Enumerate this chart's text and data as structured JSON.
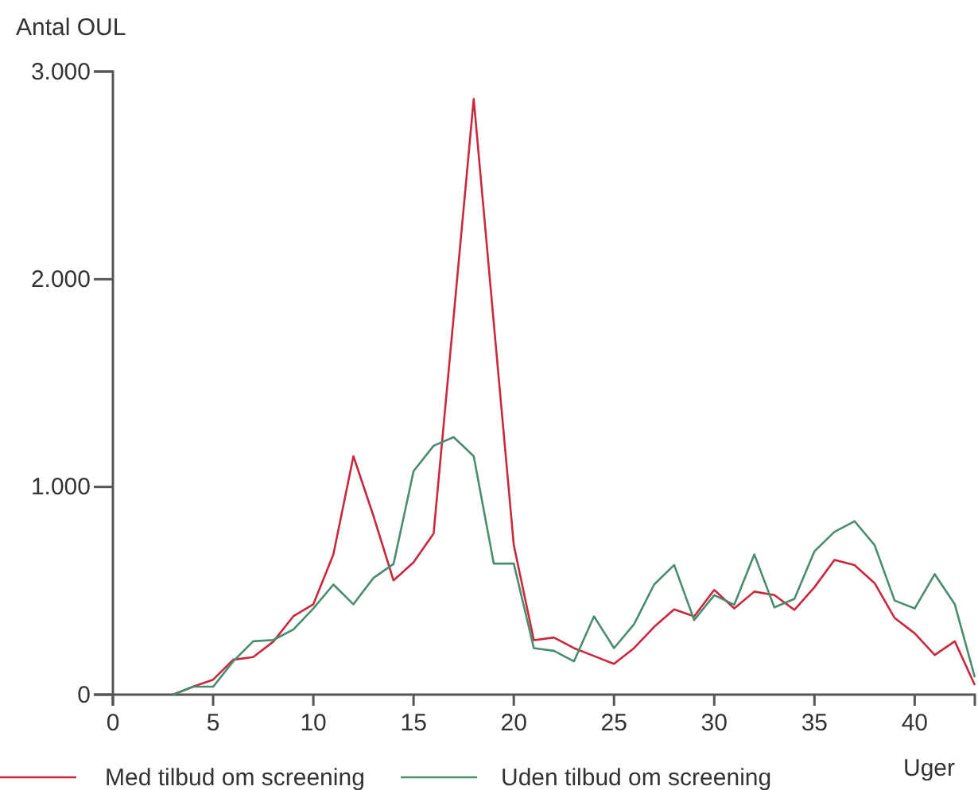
{
  "chart_data": {
    "type": "line",
    "ylabel": "Antal OUL",
    "xlabel": "Uger",
    "x": [
      3,
      4,
      5,
      6,
      7,
      8,
      9,
      10,
      11,
      12,
      13,
      14,
      15,
      16,
      17,
      18,
      19,
      20,
      21,
      22,
      23,
      24,
      25,
      26,
      27,
      28,
      29,
      30,
      31,
      32,
      33,
      34,
      35,
      36,
      37,
      38,
      39,
      40,
      41,
      42,
      43
    ],
    "series": [
      {
        "name": "Med tilbud om screening",
        "color": "#c8283c",
        "values": [
          0,
          38,
          72,
          168,
          181,
          255,
          377,
          435,
          675,
          1148,
          860,
          550,
          637,
          776,
          1820,
          2868,
          1790,
          720,
          262,
          275,
          224,
          186,
          148,
          224,
          326,
          410,
          377,
          504,
          415,
          496,
          479,
          408,
          517,
          649,
          624,
          537,
          369,
          295,
          191,
          257,
          46
        ]
      },
      {
        "name": "Uden tilbud om screening",
        "color": "#4a8c6e",
        "values": [
          0,
          38,
          38,
          160,
          257,
          263,
          313,
          415,
          530,
          435,
          562,
          629,
          1076,
          1198,
          1240,
          1148,
          631,
          631,
          224,
          211,
          160,
          377,
          224,
          339,
          530,
          624,
          359,
          479,
          433,
          675,
          420,
          461,
          690,
          784,
          835,
          720,
          453,
          415,
          580,
          435,
          84
        ]
      }
    ],
    "xlim": [
      0,
      43
    ],
    "ylim": [
      0,
      3000
    ],
    "xticks": [
      0,
      5,
      10,
      15,
      20,
      25,
      30,
      35,
      40
    ],
    "yticks": [
      0,
      {
        "value": 1000,
        "label": "1.000"
      },
      {
        "value": 2000,
        "label": "2.000"
      },
      {
        "value": 3000,
        "label": "3.000"
      }
    ],
    "grid": false,
    "legend": "bottom",
    "marker": "none",
    "line_style": "solid"
  }
}
